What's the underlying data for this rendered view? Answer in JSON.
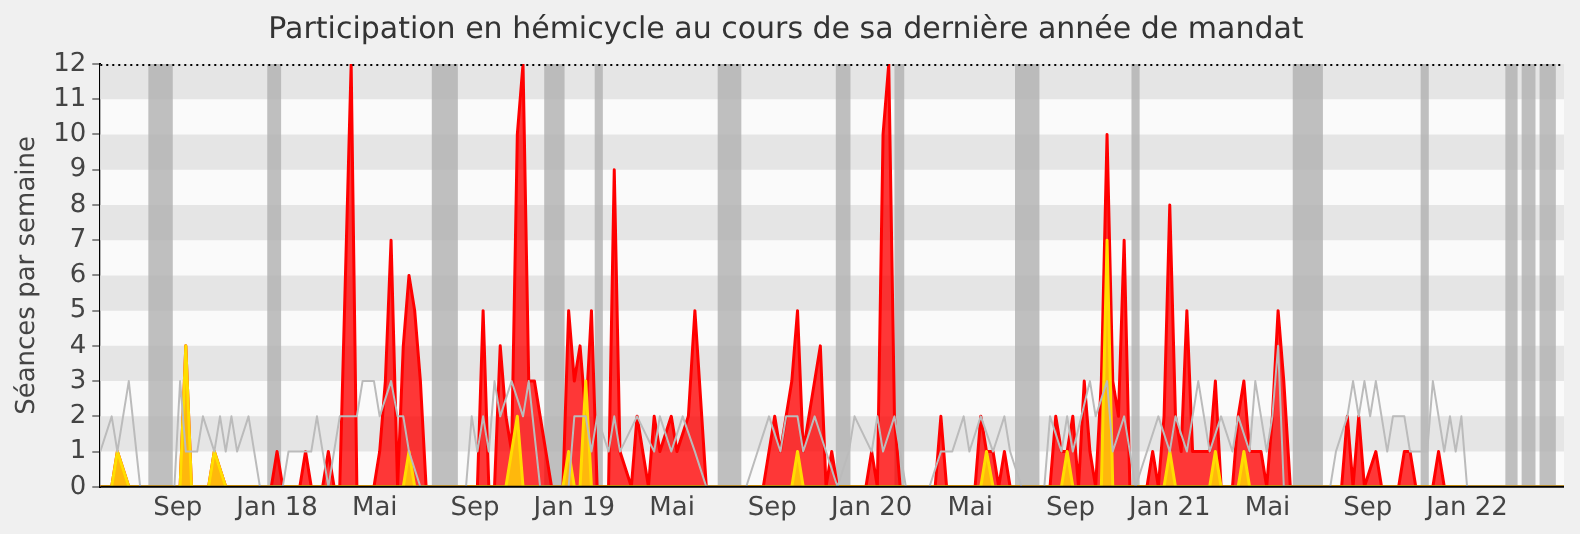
{
  "chart_data": {
    "type": "area",
    "title": "Participation en hémicycle au cours de sa dernière année de mandat",
    "ylabel": "Séances par semaine",
    "xlim": [
      "2017-05-29",
      "2022-04-30"
    ],
    "xticks": [
      {
        "value": "2017-09-01",
        "label": "Sep"
      },
      {
        "value": "2018-01-01",
        "label": "Jan 18"
      },
      {
        "value": "2018-05-01",
        "label": "Mai"
      },
      {
        "value": "2018-09-01",
        "label": "Sep"
      },
      {
        "value": "2019-01-01",
        "label": "Jan 19"
      },
      {
        "value": "2019-05-01",
        "label": "Mai"
      },
      {
        "value": "2019-09-01",
        "label": "Sep"
      },
      {
        "value": "2020-01-01",
        "label": "Jan 20"
      },
      {
        "value": "2020-05-01",
        "label": "Mai"
      },
      {
        "value": "2020-09-01",
        "label": "Sep"
      },
      {
        "value": "2021-01-01",
        "label": "Jan 21"
      },
      {
        "value": "2021-05-01",
        "label": "Mai"
      },
      {
        "value": "2021-09-01",
        "label": "Sep"
      },
      {
        "value": "2022-01-01",
        "label": "Jan 22"
      }
    ],
    "ylim": [
      0,
      12
    ],
    "yticks": [
      0,
      1,
      2,
      3,
      4,
      5,
      6,
      7,
      8,
      9,
      10,
      11,
      12
    ],
    "bands": [
      {
        "axis": "y",
        "from": 1,
        "to": 2,
        "color": "#e5e5e5"
      },
      {
        "axis": "y",
        "from": 3,
        "to": 4,
        "color": "#e5e5e5"
      },
      {
        "axis": "y",
        "from": 5,
        "to": 6,
        "color": "#e5e5e5"
      },
      {
        "axis": "y",
        "from": 7,
        "to": 8,
        "color": "#e5e5e5"
      },
      {
        "axis": "y",
        "from": 9,
        "to": 10,
        "color": "#e5e5e5"
      },
      {
        "axis": "y",
        "from": 11,
        "to": 12,
        "color": "#e5e5e5"
      },
      {
        "axis": "x",
        "from": "2017-07-27",
        "to": "2017-08-26",
        "color": "#b4b4b4"
      },
      {
        "axis": "x",
        "from": "2017-12-20",
        "to": "2018-01-06",
        "color": "#b4b4b4"
      },
      {
        "axis": "x",
        "from": "2018-07-10",
        "to": "2018-08-11",
        "color": "#b4b4b4"
      },
      {
        "axis": "x",
        "from": "2018-11-25",
        "to": "2018-12-20",
        "color": "#b4b4b4"
      },
      {
        "axis": "x",
        "from": "2019-01-26",
        "to": "2019-02-05",
        "color": "#b4b4b4"
      },
      {
        "axis": "x",
        "from": "2019-06-26",
        "to": "2019-07-25",
        "color": "#b4b4b4"
      },
      {
        "axis": "x",
        "from": "2019-11-18",
        "to": "2019-12-06",
        "color": "#b4b4b4"
      },
      {
        "axis": "x",
        "from": "2020-01-29",
        "to": "2020-02-10",
        "color": "#b4b4b4"
      },
      {
        "axis": "x",
        "from": "2020-06-25",
        "to": "2020-07-25",
        "color": "#b4b4b4"
      },
      {
        "axis": "x",
        "from": "2020-11-15",
        "to": "2020-11-25",
        "color": "#b4b4b4"
      },
      {
        "axis": "x",
        "from": "2021-06-01",
        "to": "2021-07-08",
        "color": "#b4b4b4"
      },
      {
        "axis": "x",
        "from": "2021-11-05",
        "to": "2021-11-15",
        "color": "#b4b4b4"
      },
      {
        "axis": "x",
        "from": "2022-02-17",
        "to": "2022-03-04",
        "color": "#b4b4b4"
      },
      {
        "axis": "x",
        "from": "2022-03-09",
        "to": "2022-03-26",
        "color": "#b4b4b4"
      },
      {
        "axis": "x",
        "from": "2022-03-31",
        "to": "2022-04-20",
        "color": "#b4b4b4"
      }
    ],
    "series": [
      {
        "type": "line",
        "color": "#bbbbbb",
        "x": [
          "2017-05-29",
          "2017-06-12",
          "2017-06-19",
          "2017-07-03",
          "2017-07-17",
          "2017-08-28",
          "2017-09-04",
          "2017-09-11",
          "2017-09-25",
          "2017-10-02",
          "2017-10-16",
          "2017-10-23",
          "2017-10-30",
          "2017-11-06",
          "2017-11-13",
          "2017-11-27",
          "2017-12-04",
          "2017-12-11",
          "2018-01-08",
          "2018-01-15",
          "2018-02-12",
          "2018-02-19",
          "2018-02-26",
          "2018-03-05",
          "2018-03-12",
          "2018-03-19",
          "2018-04-09",
          "2018-04-16",
          "2018-04-30",
          "2018-05-07",
          "2018-05-21",
          "2018-05-29",
          "2018-06-05",
          "2018-06-12",
          "2018-06-26",
          "2018-08-21",
          "2018-08-28",
          "2018-09-04",
          "2018-09-11",
          "2018-09-18",
          "2018-09-25",
          "2018-10-02",
          "2018-10-16",
          "2018-10-30",
          "2018-11-06",
          "2018-11-20",
          "2018-12-25",
          "2019-01-01",
          "2019-01-15",
          "2019-01-22",
          "2019-01-29",
          "2019-02-12",
          "2019-02-19",
          "2019-02-26",
          "2019-03-19",
          "2019-04-09",
          "2019-04-16",
          "2019-04-30",
          "2019-05-14",
          "2019-05-29",
          "2019-06-12",
          "2019-07-31",
          "2019-08-14",
          "2019-08-28",
          "2019-09-11",
          "2019-09-18",
          "2019-10-02",
          "2019-10-09",
          "2019-10-23",
          "2019-11-06",
          "2019-11-20",
          "2019-12-04",
          "2019-12-11",
          "2020-01-01",
          "2020-01-08",
          "2020-01-15",
          "2020-01-29",
          "2020-02-12",
          "2020-03-12",
          "2020-03-26",
          "2020-04-09",
          "2020-04-23",
          "2020-04-30",
          "2020-05-14",
          "2020-05-29",
          "2020-06-12",
          "2020-06-19",
          "2020-07-03",
          "2020-07-31",
          "2020-08-07",
          "2020-08-21",
          "2020-08-28",
          "2020-09-04",
          "2020-09-25",
          "2020-10-02",
          "2020-10-16",
          "2020-10-23",
          "2020-11-06",
          "2020-11-20",
          "2020-12-04",
          "2020-12-18",
          "2021-01-01",
          "2021-01-08",
          "2021-01-22",
          "2021-02-05",
          "2021-02-19",
          "2021-03-05",
          "2021-03-19",
          "2021-03-26",
          "2021-04-09",
          "2021-04-16",
          "2021-04-30",
          "2021-05-07",
          "2021-05-14",
          "2021-05-21",
          "2021-07-17",
          "2021-07-24",
          "2021-08-07",
          "2021-08-14",
          "2021-08-21",
          "2021-08-28",
          "2021-09-04",
          "2021-09-11",
          "2021-09-18",
          "2021-09-25",
          "2021-10-02",
          "2021-10-16",
          "2021-10-23",
          "2021-11-13",
          "2021-11-20",
          "2021-11-27",
          "2021-12-04",
          "2021-12-11",
          "2021-12-18",
          "2021-12-25",
          "2022-01-01",
          "2022-04-30"
        ],
        "values": [
          1,
          2,
          1,
          3,
          0,
          0,
          3,
          1,
          1,
          2,
          1,
          2,
          1,
          2,
          1,
          2,
          1,
          0,
          0,
          1,
          1,
          2,
          1,
          0,
          1,
          2,
          2,
          3,
          3,
          2,
          3,
          2,
          2,
          1,
          0,
          0,
          2,
          1,
          2,
          1,
          3,
          2,
          3,
          2,
          3,
          0,
          0,
          2,
          2,
          1,
          2,
          1,
          2,
          1,
          2,
          1,
          2,
          1,
          2,
          1,
          0,
          0,
          1,
          2,
          1,
          2,
          2,
          1,
          2,
          1,
          0,
          1,
          2,
          1,
          2,
          1,
          2,
          0,
          0,
          1,
          1,
          2,
          1,
          2,
          1,
          2,
          1,
          0,
          0,
          2,
          1,
          2,
          1,
          3,
          2,
          3,
          1,
          2,
          0,
          1,
          2,
          1,
          2,
          1,
          3,
          1,
          2,
          1,
          2,
          1,
          3,
          1,
          2,
          4,
          0,
          0,
          1,
          2,
          3,
          2,
          3,
          2,
          3,
          2,
          1,
          2,
          2,
          1,
          1,
          3,
          2,
          1,
          2,
          1,
          2,
          0,
          0
        ]
      },
      {
        "type": "area",
        "color": "#ff0000",
        "x": [
          "2017-05-29",
          "2017-06-12",
          "2017-06-19",
          "2017-07-03",
          "2017-09-04",
          "2017-09-11",
          "2017-09-18",
          "2017-10-09",
          "2017-10-16",
          "2017-10-30",
          "2017-12-25",
          "2018-01-01",
          "2018-01-08",
          "2018-01-29",
          "2018-02-05",
          "2018-02-12",
          "2018-02-26",
          "2018-03-05",
          "2018-03-12",
          "2018-03-19",
          "2018-03-26",
          "2018-04-02",
          "2018-04-09",
          "2018-04-30",
          "2018-05-07",
          "2018-05-14",
          "2018-05-21",
          "2018-05-29",
          "2018-06-05",
          "2018-06-12",
          "2018-06-19",
          "2018-06-26",
          "2018-07-03",
          "2018-09-04",
          "2018-09-11",
          "2018-09-18",
          "2018-09-25",
          "2018-10-02",
          "2018-10-09",
          "2018-10-16",
          "2018-10-23",
          "2018-10-30",
          "2018-11-06",
          "2018-11-13",
          "2018-11-20",
          "2018-11-27",
          "2018-12-04",
          "2018-12-18",
          "2018-12-25",
          "2019-01-01",
          "2019-01-08",
          "2019-01-15",
          "2019-01-22",
          "2019-01-29",
          "2019-02-12",
          "2019-02-19",
          "2019-02-26",
          "2019-03-12",
          "2019-03-19",
          "2019-04-02",
          "2019-04-09",
          "2019-04-16",
          "2019-04-30",
          "2019-05-07",
          "2019-05-21",
          "2019-05-29",
          "2019-06-12",
          "2019-08-21",
          "2019-09-04",
          "2019-09-11",
          "2019-09-25",
          "2019-10-02",
          "2019-10-09",
          "2019-10-16",
          "2019-10-30",
          "2019-11-06",
          "2019-11-13",
          "2019-11-20",
          "2019-12-25",
          "2020-01-01",
          "2020-01-08",
          "2020-01-15",
          "2020-01-22",
          "2020-01-29",
          "2020-02-05",
          "2020-03-19",
          "2020-03-26",
          "2020-04-02",
          "2020-05-07",
          "2020-05-14",
          "2020-05-21",
          "2020-05-29",
          "2020-06-05",
          "2020-06-12",
          "2020-06-19",
          "2020-08-07",
          "2020-08-14",
          "2020-08-21",
          "2020-08-28",
          "2020-09-04",
          "2020-09-11",
          "2020-09-18",
          "2020-09-25",
          "2020-10-02",
          "2020-10-09",
          "2020-10-16",
          "2020-10-23",
          "2020-10-30",
          "2020-11-06",
          "2020-11-13",
          "2020-12-04",
          "2020-12-11",
          "2020-12-18",
          "2020-12-25",
          "2021-01-01",
          "2021-01-08",
          "2021-01-15",
          "2021-01-22",
          "2021-01-29",
          "2021-02-19",
          "2021-02-26",
          "2021-03-05",
          "2021-03-19",
          "2021-03-26",
          "2021-04-02",
          "2021-04-09",
          "2021-04-23",
          "2021-04-30",
          "2021-05-07",
          "2021-05-14",
          "2021-05-21",
          "2021-05-29",
          "2021-07-31",
          "2021-08-07",
          "2021-08-14",
          "2021-08-21",
          "2021-08-28",
          "2021-09-11",
          "2021-09-18",
          "2021-10-09",
          "2021-10-16",
          "2021-10-23",
          "2021-10-30",
          "2021-11-20",
          "2021-11-27",
          "2021-12-04",
          "2022-04-30"
        ],
        "values": [
          0,
          0,
          1,
          0,
          0,
          4,
          0,
          0,
          1,
          0,
          0,
          1,
          0,
          0,
          1,
          0,
          0,
          1,
          0,
          0,
          6,
          12,
          0,
          0,
          1,
          3,
          7,
          0,
          4,
          6,
          5,
          3,
          0,
          0,
          5,
          0,
          0,
          4,
          2,
          1,
          10,
          12,
          3,
          3,
          2,
          1,
          0,
          0,
          5,
          3,
          4,
          2,
          5,
          0,
          0,
          9,
          1,
          0,
          2,
          0,
          2,
          1,
          2,
          1,
          2,
          5,
          0,
          0,
          2,
          1,
          3,
          5,
          1,
          2,
          4,
          0,
          1,
          0,
          0,
          1,
          0,
          10,
          12,
          2,
          0,
          0,
          2,
          0,
          0,
          2,
          1,
          1,
          0,
          1,
          0,
          0,
          2,
          1,
          1,
          2,
          0,
          3,
          1,
          0,
          3,
          10,
          3,
          2,
          7,
          0,
          0,
          1,
          0,
          2,
          8,
          2,
          1,
          5,
          1,
          1,
          3,
          0,
          0,
          2,
          3,
          1,
          1,
          0,
          2,
          5,
          3,
          0,
          0,
          2,
          0,
          2,
          0,
          1,
          0,
          0,
          1,
          1,
          0,
          0,
          1,
          0,
          0
        ]
      },
      {
        "type": "area",
        "color": "#ffdd00",
        "x": [
          "2017-05-29",
          "2017-06-12",
          "2017-06-19",
          "2017-07-03",
          "2017-09-04",
          "2017-09-11",
          "2017-09-18",
          "2017-10-09",
          "2017-10-16",
          "2017-10-30",
          "2018-06-05",
          "2018-06-12",
          "2018-06-19",
          "2018-10-09",
          "2018-10-16",
          "2018-10-23",
          "2018-10-30",
          "2018-12-18",
          "2018-12-25",
          "2019-01-01",
          "2019-01-08",
          "2019-01-15",
          "2019-01-22",
          "2019-09-25",
          "2019-10-02",
          "2019-10-09",
          "2020-05-14",
          "2020-05-21",
          "2020-05-29",
          "2020-08-21",
          "2020-08-28",
          "2020-09-04",
          "2020-10-09",
          "2020-10-16",
          "2020-10-23",
          "2020-12-25",
          "2021-01-01",
          "2021-01-08",
          "2021-02-19",
          "2021-02-26",
          "2021-03-05",
          "2021-03-26",
          "2021-04-02",
          "2021-04-09",
          "2022-04-30"
        ],
        "values": [
          0,
          0,
          1,
          0,
          0,
          4,
          0,
          0,
          1,
          0,
          0,
          1,
          0,
          0,
          1,
          2,
          0,
          0,
          1,
          0,
          0,
          3,
          0,
          0,
          1,
          0,
          0,
          1,
          0,
          0,
          1,
          0,
          0,
          7,
          0,
          0,
          1,
          0,
          0,
          1,
          0,
          0,
          1,
          0,
          0
        ]
      }
    ]
  }
}
